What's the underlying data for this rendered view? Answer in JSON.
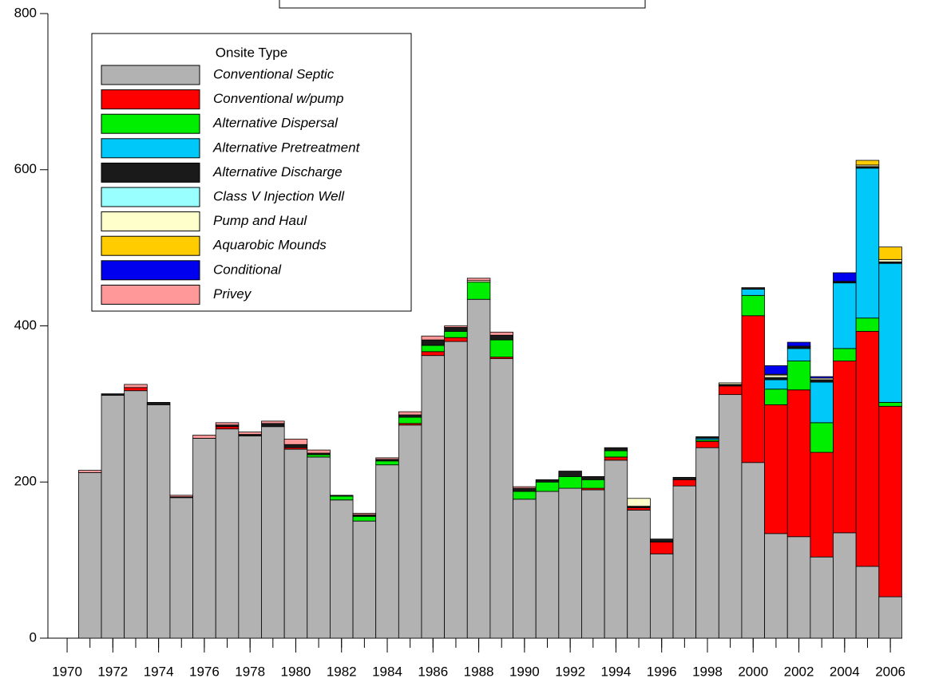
{
  "chart_data": {
    "type": "stacked-bar",
    "x": [
      1971,
      1972,
      1973,
      1974,
      1975,
      1976,
      1977,
      1978,
      1979,
      1980,
      1981,
      1982,
      1983,
      1984,
      1985,
      1986,
      1987,
      1988,
      1989,
      1990,
      1991,
      1992,
      1993,
      1994,
      1995,
      1996,
      1997,
      1998,
      1999,
      2000,
      2001,
      2002,
      2003,
      2004,
      2005,
      2006
    ],
    "xlim": [
      1969.16,
      2006.52
    ],
    "xticks": [
      1970,
      1972,
      1974,
      1976,
      1978,
      1980,
      1982,
      1984,
      1986,
      1988,
      1990,
      1992,
      1994,
      1996,
      1998,
      2000,
      2002,
      2004,
      2006
    ],
    "ylim": [
      0,
      800
    ],
    "yticks": [
      0,
      200,
      400,
      600,
      800
    ],
    "legend_title": "Onsite Type",
    "series": [
      {
        "name": "Conventional Septic",
        "color": "#b2b2b2",
        "values": [
          212,
          311,
          317,
          299,
          180,
          256,
          268,
          259,
          271,
          242,
          232,
          177,
          150,
          222,
          273,
          362,
          380,
          434,
          358,
          178,
          188,
          192,
          190,
          228,
          164,
          108,
          195,
          244,
          312,
          225,
          134,
          130,
          104,
          135,
          92,
          53
        ]
      },
      {
        "name": "Conventional w/pump",
        "color": "#ff0000",
        "values": [
          0,
          0,
          4,
          0,
          0,
          0,
          3,
          0,
          0,
          2,
          0,
          0,
          0,
          0,
          2,
          5,
          5,
          0,
          2,
          0,
          0,
          0,
          2,
          4,
          3,
          15,
          8,
          8,
          11,
          188,
          165,
          188,
          134,
          220,
          301,
          244
        ]
      },
      {
        "name": "Alternative Dispersal",
        "color": "#00ee00",
        "values": [
          0,
          0,
          0,
          0,
          0,
          0,
          0,
          0,
          0,
          0,
          3,
          5,
          6,
          5,
          8,
          8,
          8,
          22,
          22,
          10,
          12,
          15,
          11,
          8,
          0,
          0,
          0,
          2,
          0,
          26,
          20,
          37,
          38,
          16,
          17,
          5
        ]
      },
      {
        "name": "Alternative Pretreatment",
        "color": "#00c8f8",
        "values": [
          0,
          0,
          0,
          0,
          0,
          0,
          0,
          0,
          0,
          0,
          0,
          0,
          0,
          0,
          0,
          0,
          0,
          0,
          0,
          0,
          0,
          0,
          0,
          0,
          0,
          0,
          0,
          2,
          0,
          8,
          12,
          16,
          52,
          84,
          192,
          178
        ]
      },
      {
        "name": "Alternative Discharge",
        "color": "#1a1a1a",
        "values": [
          0,
          2,
          0,
          3,
          1,
          0,
          2,
          2,
          4,
          4,
          2,
          1,
          2,
          2,
          3,
          7,
          5,
          0,
          6,
          4,
          3,
          7,
          4,
          4,
          2,
          4,
          3,
          2,
          2,
          1,
          2,
          2,
          3,
          2,
          2,
          2
        ]
      },
      {
        "name": "Class V Injection Well",
        "color": "#99ffff",
        "values": [
          0,
          0,
          0,
          0,
          0,
          0,
          0,
          0,
          0,
          0,
          0,
          0,
          0,
          0,
          0,
          0,
          0,
          0,
          0,
          0,
          0,
          0,
          0,
          0,
          0,
          0,
          0,
          0,
          0,
          0,
          1,
          0,
          0,
          0,
          0,
          0
        ]
      },
      {
        "name": "Pump and Haul",
        "color": "#ffffcc",
        "values": [
          0,
          0,
          0,
          0,
          0,
          0,
          0,
          0,
          0,
          0,
          0,
          0,
          0,
          0,
          0,
          0,
          0,
          2,
          0,
          0,
          0,
          0,
          0,
          0,
          10,
          0,
          0,
          0,
          2,
          1,
          3,
          1,
          2,
          0,
          2,
          3
        ]
      },
      {
        "name": "Aquarobic Mounds",
        "color": "#ffcc00",
        "values": [
          0,
          0,
          0,
          0,
          0,
          0,
          0,
          0,
          0,
          0,
          0,
          0,
          0,
          0,
          0,
          0,
          0,
          0,
          0,
          0,
          0,
          0,
          0,
          0,
          0,
          0,
          0,
          0,
          0,
          0,
          1,
          0,
          0,
          0,
          6,
          16
        ]
      },
      {
        "name": "Conditional",
        "color": "#0000ee",
        "values": [
          0,
          0,
          0,
          0,
          0,
          0,
          0,
          0,
          0,
          0,
          0,
          0,
          0,
          0,
          0,
          0,
          0,
          0,
          0,
          0,
          0,
          0,
          0,
          0,
          0,
          0,
          0,
          0,
          0,
          0,
          11,
          5,
          2,
          11,
          0,
          0
        ]
      },
      {
        "name": "Privey",
        "color": "#ff9999",
        "values": [
          3,
          0,
          4,
          0,
          2,
          4,
          3,
          3,
          3,
          7,
          4,
          0,
          2,
          2,
          4,
          5,
          2,
          3,
          4,
          2,
          0,
          0,
          0,
          0,
          0,
          0,
          0,
          0,
          0,
          0,
          0,
          0,
          0,
          0,
          0,
          0
        ]
      }
    ]
  }
}
